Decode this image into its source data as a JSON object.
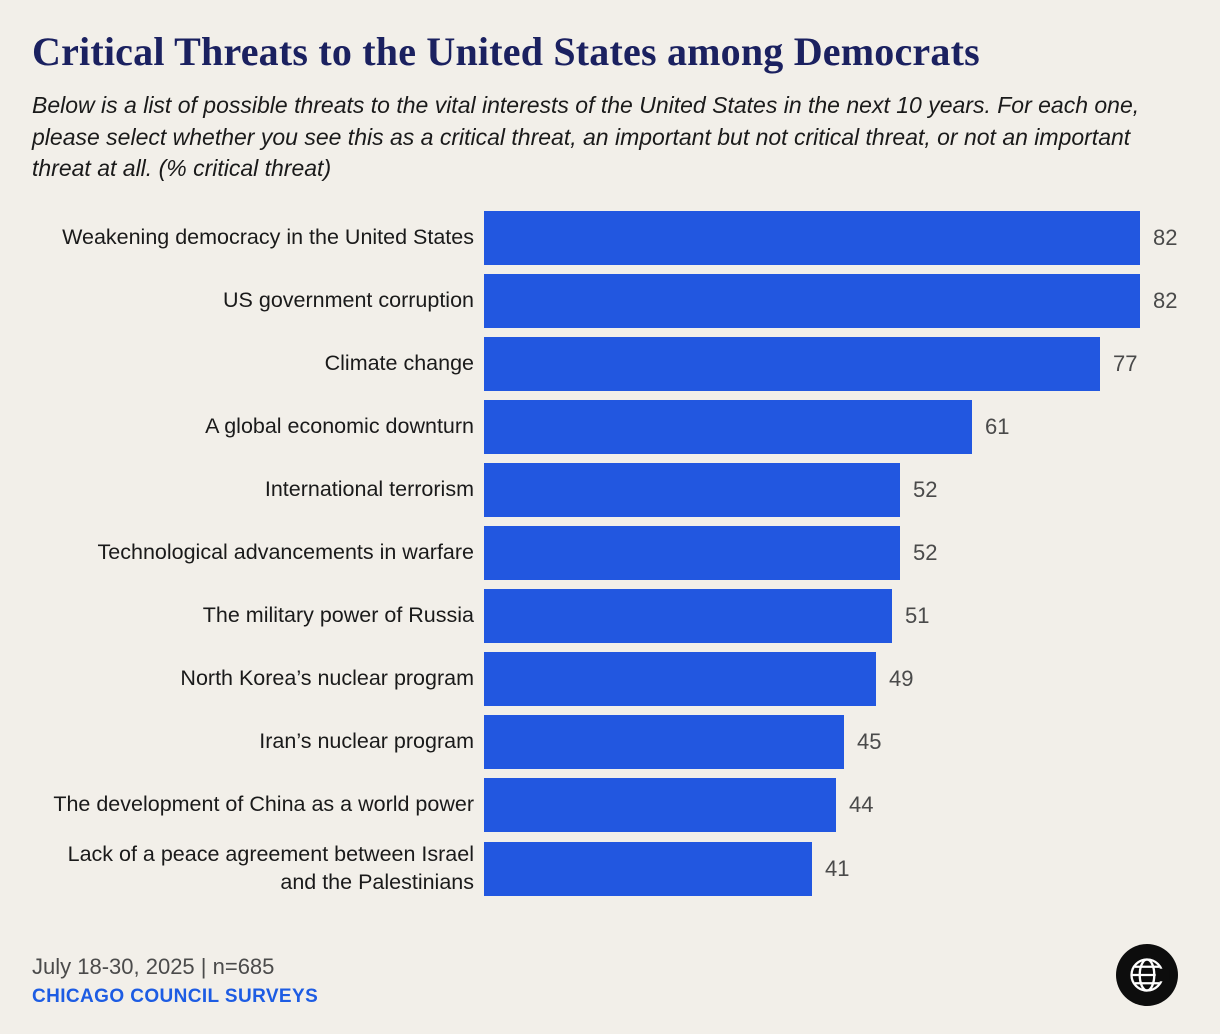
{
  "header": {
    "title": "Critical Threats to the United States among Democrats",
    "subtitle": "Below is a list of possible threats to the vital interests of the United States in the next 10 years. For each one, please select whether you see this as a critical threat, an important but not critical threat, or not an important threat at all. (% critical threat)"
  },
  "chart_data": {
    "type": "bar",
    "orientation": "horizontal",
    "title": "Critical Threats to the United States among Democrats",
    "unit": "% critical threat",
    "categories": [
      "Weakening democracy in the United States",
      "US government corruption",
      "Climate change",
      "A global economic downturn",
      "International terrorism",
      "Technological advancements in warfare",
      "The military power of Russia",
      "North Korea’s nuclear program",
      "Iran’s nuclear program",
      "The development of China as a world power",
      "Lack of a peace agreement between Israel and the Palestinians"
    ],
    "values": [
      82,
      82,
      77,
      61,
      52,
      52,
      51,
      49,
      45,
      44,
      41
    ],
    "xlim": [
      0,
      87.5
    ],
    "grid": false,
    "legend": false,
    "data_labels": true
  },
  "footer": {
    "date_note": "July 18-30, 2025 | n=685",
    "source": "CHICAGO COUNCIL SURVEYS"
  },
  "logo": {
    "name": "chicago-council-globe-logo"
  },
  "colors": {
    "background": "#f2efe9",
    "title": "#1b2160",
    "bar": "#2257e0",
    "value_label": "#4a4a4a",
    "text": "#1a1a1a",
    "source": "#1d5ce3",
    "logo": "#0d0d0d"
  }
}
